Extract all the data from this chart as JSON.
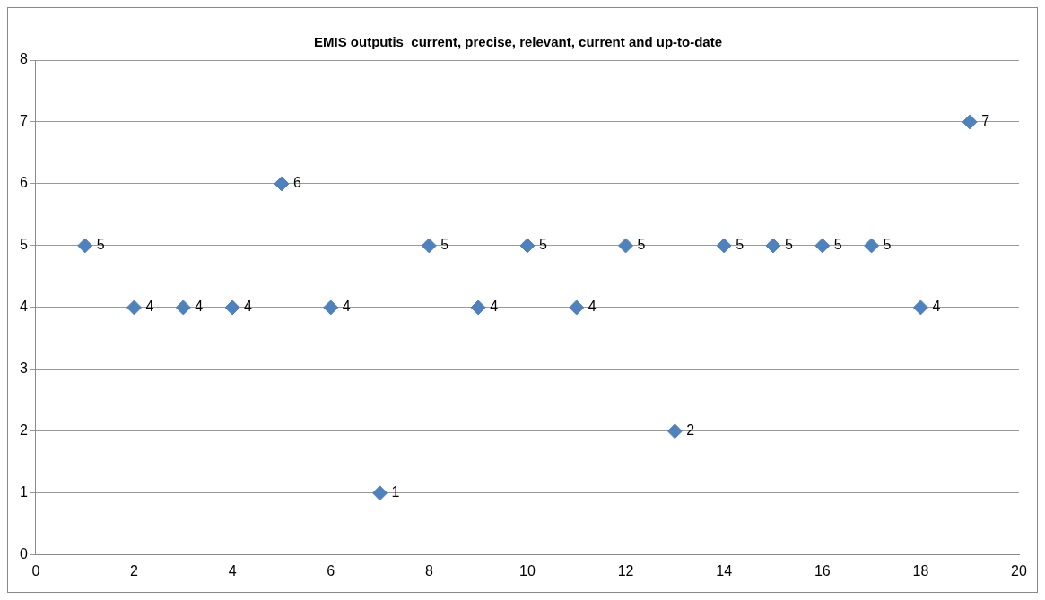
{
  "chart_data": {
    "type": "scatter",
    "title": "EMIS outputis  current, precise, relevant, current and up-to-date",
    "x": [
      1,
      2,
      3,
      4,
      5,
      6,
      7,
      8,
      9,
      10,
      11,
      12,
      13,
      14,
      15,
      16,
      17,
      18,
      19
    ],
    "values": [
      5,
      4,
      4,
      4,
      6,
      4,
      1,
      5,
      4,
      5,
      4,
      5,
      2,
      5,
      5,
      5,
      5,
      4,
      7
    ],
    "color": "#4f81bd",
    "marker": "diamond",
    "data_labels": true,
    "xlim": [
      0,
      20
    ],
    "xticks": [
      0,
      2,
      4,
      6,
      8,
      10,
      12,
      14,
      16,
      18,
      20
    ],
    "ylim": [
      0,
      8
    ],
    "yticks": [
      0,
      1,
      2,
      3,
      4,
      5,
      6,
      7,
      8
    ],
    "grid": "y",
    "legend": false
  }
}
